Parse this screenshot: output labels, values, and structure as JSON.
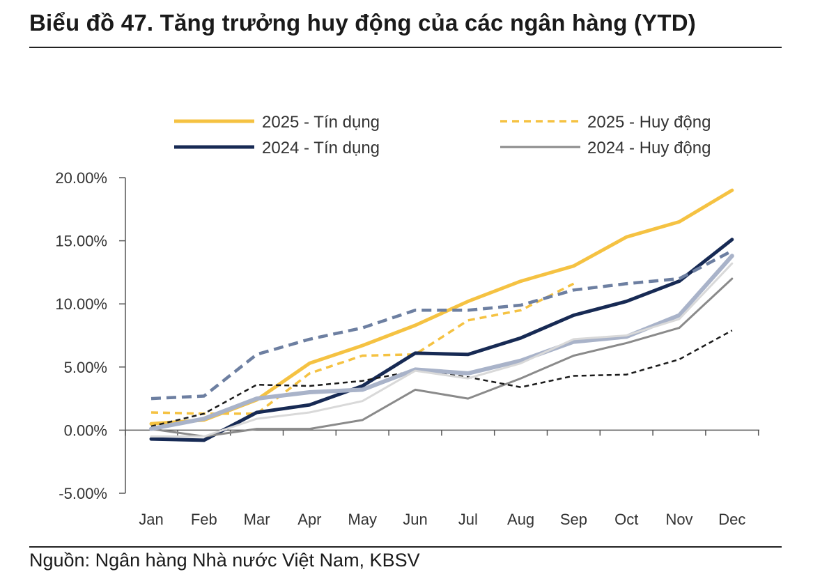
{
  "title": "Biểu đồ 47. Tăng trưởng huy động của các ngân hàng (YTD)",
  "source": "Nguồn: Ngân hàng Nhà nước Việt Nam, KBSV",
  "colors": {
    "gold": "#f5c242",
    "navy": "#172a54",
    "steel": "#6d7fa1",
    "lightsteel": "#a9b3c9",
    "gray": "#8a8a8a",
    "lightgray": "#d9d9d9",
    "black": "#1a1a1a"
  },
  "chart_data": {
    "type": "line",
    "categories": [
      "Jan",
      "Feb",
      "Mar",
      "Apr",
      "May",
      "Jun",
      "Jul",
      "Aug",
      "Sep",
      "Oct",
      "Nov",
      "Dec"
    ],
    "ylim": [
      -5,
      20
    ],
    "yticks": [
      -5,
      0,
      5,
      10,
      15,
      20
    ],
    "ytick_labels": [
      "-5.00%",
      "0.00%",
      "5.00%",
      "10.00%",
      "15.00%",
      "20.00%"
    ],
    "series": [
      {
        "name": "2025 - Tín dụng",
        "legend": true,
        "color": "#f5c242",
        "dash": "solid",
        "width": 5,
        "values": [
          0.5,
          0.8,
          2.4,
          5.3,
          6.7,
          8.3,
          10.2,
          11.8,
          13.0,
          15.3,
          16.5,
          19.0
        ]
      },
      {
        "name": "2025 - Huy động",
        "legend": true,
        "color": "#f5c242",
        "dash": "dashed",
        "width": 3.5,
        "values": [
          1.4,
          1.3,
          1.3,
          4.5,
          5.9,
          6.0,
          8.7,
          9.5,
          11.6,
          null,
          null,
          null
        ]
      },
      {
        "name": "2024 - Tín dụng",
        "legend": true,
        "color": "#172a54",
        "dash": "solid",
        "width": 5,
        "values": [
          -0.7,
          -0.8,
          1.4,
          2.0,
          3.5,
          6.1,
          6.0,
          7.3,
          9.1,
          10.2,
          11.8,
          15.1
        ]
      },
      {
        "name": "2024 - Huy động",
        "legend": true,
        "color": "#8a8a8a",
        "dash": "solid",
        "width": 3,
        "values": [
          0.1,
          -0.5,
          0.1,
          0.1,
          0.8,
          3.2,
          2.5,
          4.1,
          5.9,
          6.9,
          8.1,
          12.0
        ]
      },
      {
        "name": "",
        "legend": false,
        "color": "#6d7fa1",
        "dash": "dashed",
        "width": 4.5,
        "values": [
          2.5,
          2.7,
          6.0,
          7.2,
          8.1,
          9.5,
          9.5,
          9.9,
          11.1,
          11.6,
          12.0,
          14.2
        ]
      },
      {
        "name": "",
        "legend": false,
        "color": "#1a1a1a",
        "dash": "dashed",
        "width": 2.5,
        "values": [
          0.3,
          1.3,
          3.6,
          3.5,
          3.9,
          4.7,
          4.2,
          3.4,
          4.3,
          4.4,
          5.6,
          7.9
        ]
      },
      {
        "name": "",
        "legend": false,
        "color": "#a9b3c9",
        "dash": "solid",
        "width": 6,
        "values": [
          0.1,
          0.9,
          2.5,
          3.0,
          3.2,
          4.8,
          4.5,
          5.5,
          7.0,
          7.4,
          9.1,
          13.8
        ]
      },
      {
        "name": "",
        "legend": false,
        "color": "#d9d9d9",
        "dash": "solid",
        "width": 3,
        "values": [
          -0.5,
          -0.5,
          0.9,
          1.4,
          2.3,
          4.7,
          4.1,
          5.3,
          7.2,
          7.5,
          8.8,
          13.2
        ]
      }
    ]
  }
}
